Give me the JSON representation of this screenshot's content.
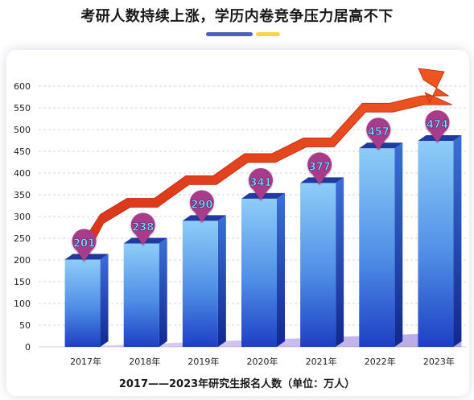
{
  "title": "考研人数持续上涨，学历内卷竞争压力居高不下",
  "caption": "2017——2023年研究生报名人数（单位：万人）",
  "colors": {
    "bar_light": "#7ec3f5",
    "bar_dark": "#1d3fc4",
    "bar_top": "#1f3b9f",
    "pin": "#a83a8a",
    "pin_text": "#8fd8ff",
    "arrow": "#e0421c",
    "deco_blue": "#4f63b8",
    "deco_yellow": "#f4d84a"
  },
  "chart_data": {
    "type": "bar",
    "categories": [
      "2017年",
      "2018年",
      "2019年",
      "2020年",
      "2021年",
      "2022年",
      "2023年"
    ],
    "values": [
      201,
      238,
      290,
      341,
      377,
      457,
      474
    ],
    "data_labels": [
      "201",
      "238",
      "290",
      "341",
      "377",
      "457",
      "474"
    ],
    "ylim": [
      0,
      600
    ],
    "yticks": [
      "0",
      "50",
      "100",
      "150",
      "200",
      "250",
      "300",
      "350",
      "400",
      "450",
      "500",
      "550",
      "600"
    ],
    "grid": true,
    "trend_arrow": true
  }
}
